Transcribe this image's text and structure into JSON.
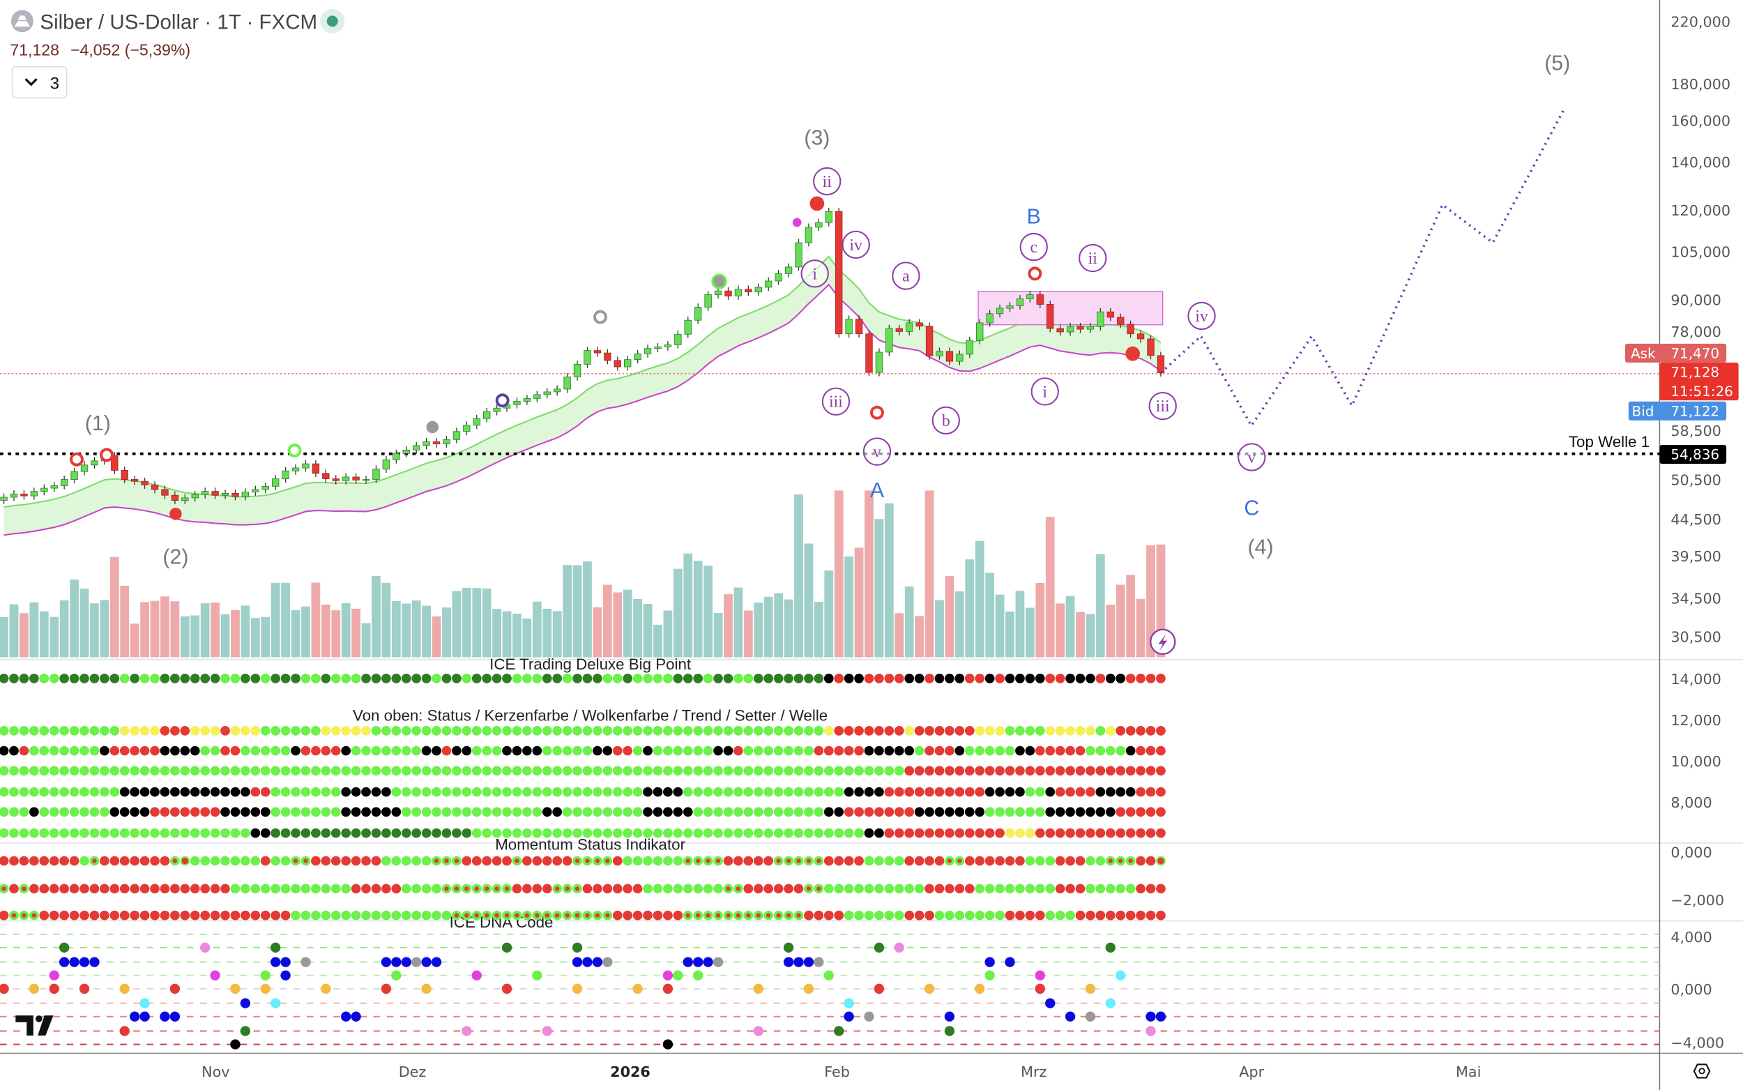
{
  "header": {
    "symbol_title": "Silber / US-Dollar · 1T · FXCM",
    "last_price": "71,128",
    "change": "−4,052 (−5,39%)",
    "indicator_toggle_count": "3"
  },
  "price_tags": {
    "ask_label": "Ask",
    "ask_value": "71,470",
    "last_value": "71,128",
    "countdown": "11:51:26",
    "bid_label": "Bid",
    "bid_value": "71,122",
    "level_label": "Top Welle 1",
    "level_value": "54,836"
  },
  "elliott_labels": {
    "w1": "(1)",
    "w2": "(2)",
    "w3": "(3)",
    "w4": "(4)",
    "w5": "(5)",
    "A": "A",
    "B": "B",
    "C": "C",
    "sub": [
      "ii",
      "iv",
      "i",
      "a",
      "iii",
      "v",
      "b",
      "c",
      "ii",
      "i",
      "iv",
      "iii",
      "v"
    ]
  },
  "panels": {
    "big_point_title": "ICE Trading Deluxe Big Point",
    "status_title": "Von oben: Status / Kerzenfarbe / Wolkenfarbe / Trend / Setter / Welle",
    "momentum_title": "Momentum Status Indikator",
    "dna_title": "ICE DNA Code"
  },
  "colors": {
    "up": "#66dd55",
    "down": "#e53935",
    "vol_up": "#9fcfc9",
    "vol_down": "#eeaaaa",
    "cloud_fill": "#ddf7d8",
    "cloud_upper": "#7ddc6a",
    "cloud_lower": "#cc44cc",
    "projection": "#5a3fa8",
    "elliott": "#8e3fa8",
    "abc": "#3b6fe0",
    "dots": {
      "G": "#6cf04a",
      "D": "#2f7d23",
      "R": "#e53935",
      "K": "#000000",
      "Y": "#f5ef5a",
      "x": "#6cf04a",
      "o": "#e53935",
      "b": "#0a0ae0",
      "d": "#2f7d23",
      "g": "#6cf04a",
      "m": "#e040e0",
      "p": "#ee88dd",
      "r": "#e53935",
      "O": "#f5b942",
      "c": "#66eeff",
      "a": "#999999",
      "k": "#000000"
    }
  },
  "chart_data": {
    "type": "candlestick",
    "title": "Silber / US-Dollar · 1T · FXCM",
    "y_scale": "log",
    "ylim": [
      28.5,
      235
    ],
    "price_axis_labels": [
      "220,000",
      "180,000",
      "160,000",
      "140,000",
      "120,000",
      "105,000",
      "90,000",
      "78,000",
      "58,500",
      "50,500",
      "44,500",
      "39,500",
      "34,500",
      "30,500"
    ],
    "time_axis_labels": [
      "Nov",
      "Dez",
      "2026",
      "Feb",
      "Mrz",
      "Apr",
      "Mai"
    ],
    "closes": [
      47.7,
      48.2,
      47.9,
      48.6,
      49.1,
      49.5,
      50.5,
      51.8,
      52.9,
      53.6,
      54.5,
      52.0,
      50.5,
      50.2,
      49.6,
      48.9,
      48.0,
      47.2,
      47.6,
      48.1,
      48.6,
      48.0,
      48.3,
      47.8,
      48.5,
      48.9,
      49.4,
      50.6,
      51.9,
      52.4,
      53.1,
      51.5,
      50.6,
      50.3,
      50.9,
      50.4,
      50.5,
      52.2,
      53.8,
      54.9,
      55.5,
      56.3,
      57.0,
      56.6,
      57.4,
      58.9,
      60.1,
      61.4,
      62.8,
      63.5,
      64.2,
      64.9,
      65.5,
      66.3,
      66.9,
      67.5,
      70.2,
      73.1,
      76.4,
      75.8,
      74.0,
      72.5,
      74.2,
      75.6,
      76.9,
      77.3,
      77.8,
      80.5,
      84.2,
      87.8,
      91.4,
      92.5,
      91.0,
      93.0,
      92.2,
      93.6,
      95.5,
      97.8,
      99.9,
      108.0,
      113.5,
      115.2,
      119.4,
      80.6,
      84.5,
      80.6,
      71.2,
      76.0,
      82.0,
      81.2,
      83.5,
      82.6,
      75.1,
      76.2,
      73.8,
      75.5,
      78.9,
      83.5,
      86.0,
      87.5,
      88.2,
      90.2,
      91.4,
      88.6,
      82.0,
      81.1,
      82.5,
      81.8,
      82.5,
      86.5,
      85.0,
      83.1,
      80.6,
      79.3,
      75.18,
      71.128
    ],
    "horizontal_level": 54.836,
    "projection_path": [
      [
        71.1,
        0
      ],
      [
        80,
        4
      ],
      [
        60,
        9
      ],
      [
        80,
        15
      ],
      [
        64,
        19
      ],
      [
        122,
        28
      ],
      [
        108,
        33
      ],
      [
        165,
        40
      ]
    ],
    "indicators": {
      "big_point_axis": [
        "14,000",
        "12,000",
        "10,000",
        "8,000"
      ],
      "momentum_axis": [
        "0,000",
        "−2,000"
      ],
      "dna_axis": [
        "4,000",
        "0,000",
        "−4,000"
      ],
      "big_point": "4D 2G 6D 1G 1D 2G 6D 2G 2D 1G 3D 2G 1D 3G 7D 1G 2D 1G 4D 3G 2D 1G 3D 2G 1D 4G 3D 1G 2D 2G 7D 1K 1R 2K 4R 2K 1R 3K 2R 1K 1R 4K 2R 3K 1R 2K 4R",
      "status_rows": [
        "12G 4Y 3R 3Y 1R 3Y 6G 5Y 45G 1Y 7R 1Y 6R 3Y 4G 5Y 1G 1Y 5R",
        "2K 1R 7G 1K 5R 4K 2G 2R 5G 1K 4R 1K 7G 2K 1R 2K 3G 4K 5G 2K 2R 1G 1K 6G 2K 1R 7G 5R 5K 1G 3R 1K 5G 2K 5R 4G 1K 3R",
        "90G 26R",
        "12G 13K 2R 7G 5K 25G 4K 16G 4K 10R 4K 2G 1K 4R 4K 3R",
        "3G 1K 7G 4K 7R 5K 7G 6K 14G 2K 8G 5K 13G 2K 7R 7K 6G 7K 5R",
        "25G 2K 20D 39G 2K 12R 3Y 13R"
      ],
      "momentum_rows": [
        "8R 1G 1x 7R 1x 1o 7G 1R 2G 2x 7R 5G 3x 5R 1x 5R 4x 1R 6G 4x 5R 5x 4R 4G 4R 2x 6R 3G 3R 2G 3x 2R 1o",
        "1x 1R 1x 20R 12G 5R 4G 7x 4R 3x 6R 8G 2x 6R 2x 10G 5R 8G 3R 5G 3R",
        "1R 3x 25R 16G 16x 7R 12x 4R 6G 3R 7G 4R 3G 9R"
      ],
      "dna_rows": [
        [],
        [
          [
            6,
            "d"
          ],
          [
            20,
            "p"
          ],
          [
            27,
            "d"
          ],
          [
            50,
            "d"
          ],
          [
            57,
            "d"
          ],
          [
            78,
            "d"
          ],
          [
            87,
            "d"
          ],
          [
            89,
            "p"
          ],
          [
            110,
            "d"
          ]
        ],
        [
          [
            6,
            "b"
          ],
          [
            7,
            "b"
          ],
          [
            8,
            "b"
          ],
          [
            9,
            "b"
          ],
          [
            27,
            "b"
          ],
          [
            28,
            "b"
          ],
          [
            30,
            "a"
          ],
          [
            38,
            "b"
          ],
          [
            39,
            "b"
          ],
          [
            40,
            "b"
          ],
          [
            41,
            "a"
          ],
          [
            42,
            "b"
          ],
          [
            43,
            "b"
          ],
          [
            57,
            "b"
          ],
          [
            58,
            "b"
          ],
          [
            59,
            "b"
          ],
          [
            60,
            "a"
          ],
          [
            68,
            "b"
          ],
          [
            69,
            "b"
          ],
          [
            70,
            "b"
          ],
          [
            71,
            "a"
          ],
          [
            78,
            "b"
          ],
          [
            79,
            "b"
          ],
          [
            80,
            "b"
          ],
          [
            81,
            "a"
          ],
          [
            98,
            "b"
          ],
          [
            100,
            "b"
          ]
        ],
        [
          [
            5,
            "m"
          ],
          [
            21,
            "m"
          ],
          [
            26,
            "g"
          ],
          [
            28,
            "b"
          ],
          [
            39,
            "g"
          ],
          [
            47,
            "m"
          ],
          [
            53,
            "g"
          ],
          [
            66,
            "m"
          ],
          [
            67,
            "g"
          ],
          [
            69,
            "g"
          ],
          [
            82,
            "g"
          ],
          [
            98,
            "g"
          ],
          [
            103,
            "m"
          ],
          [
            111,
            "c"
          ]
        ],
        [
          [
            0,
            "r"
          ],
          [
            3,
            "O"
          ],
          [
            5,
            "r"
          ],
          [
            8,
            "r"
          ],
          [
            12,
            "O"
          ],
          [
            17,
            "r"
          ],
          [
            23,
            "O"
          ],
          [
            26,
            "O"
          ],
          [
            32,
            "O"
          ],
          [
            38,
            "r"
          ],
          [
            42,
            "O"
          ],
          [
            50,
            "r"
          ],
          [
            57,
            "O"
          ],
          [
            63,
            "O"
          ],
          [
            66,
            "r"
          ],
          [
            75,
            "O"
          ],
          [
            80,
            "O"
          ],
          [
            87,
            "r"
          ],
          [
            92,
            "O"
          ],
          [
            97,
            "O"
          ],
          [
            103,
            "r"
          ],
          [
            108,
            "O"
          ]
        ],
        [
          [
            14,
            "c"
          ],
          [
            24,
            "b"
          ],
          [
            27,
            "c"
          ],
          [
            84,
            "c"
          ],
          [
            104,
            "b"
          ],
          [
            110,
            "c"
          ]
        ],
        [
          [
            13,
            "b"
          ],
          [
            14,
            "b"
          ],
          [
            16,
            "b"
          ],
          [
            17,
            "b"
          ],
          [
            34,
            "b"
          ],
          [
            35,
            "b"
          ],
          [
            84,
            "b"
          ],
          [
            86,
            "a"
          ],
          [
            94,
            "b"
          ],
          [
            106,
            "b"
          ],
          [
            108,
            "a"
          ],
          [
            114,
            "b"
          ],
          [
            115,
            "b"
          ]
        ],
        [
          [
            12,
            "r"
          ],
          [
            24,
            "d"
          ],
          [
            46,
            "p"
          ],
          [
            54,
            "p"
          ],
          [
            75,
            "p"
          ],
          [
            83,
            "d"
          ],
          [
            94,
            "d"
          ],
          [
            114,
            "p"
          ]
        ],
        [
          [
            23,
            "k"
          ],
          [
            66,
            "k"
          ]
        ]
      ]
    }
  }
}
